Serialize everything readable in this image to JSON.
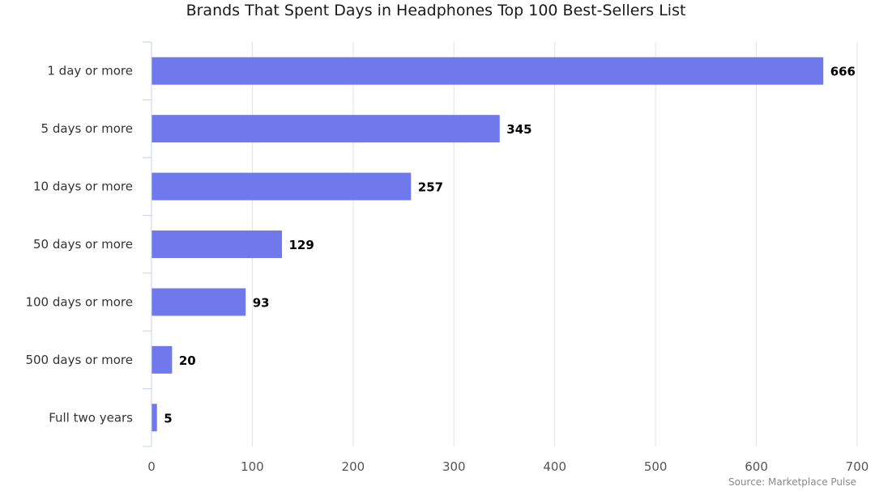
{
  "chart_data": {
    "type": "bar",
    "orientation": "horizontal",
    "title": "Brands That Spent Days in Headphones Top 100 Best-Sellers List",
    "categories": [
      "1 day or more",
      "5 days or more",
      "10 days or more",
      "50 days or more",
      "100 days or more",
      "500 days or more",
      "Full two years"
    ],
    "values": [
      666,
      345,
      257,
      129,
      93,
      20,
      5
    ],
    "value_labels": [
      "666",
      "345",
      "257",
      "129",
      "93",
      "20",
      "5"
    ],
    "xlim": [
      0,
      700
    ],
    "x_ticks": [
      0,
      100,
      200,
      300,
      400,
      500,
      600,
      700
    ],
    "x_tick_labels": [
      "0",
      "100",
      "200",
      "300",
      "400",
      "500",
      "600",
      "700"
    ],
    "xlabel": "",
    "ylabel": "",
    "grid": true,
    "legend": "none",
    "bar_color": "#6f79ec",
    "grid_color": "#e3e3e3",
    "axis_color": "#c6d0e8"
  },
  "source_text": "Source: Marketplace Pulse"
}
